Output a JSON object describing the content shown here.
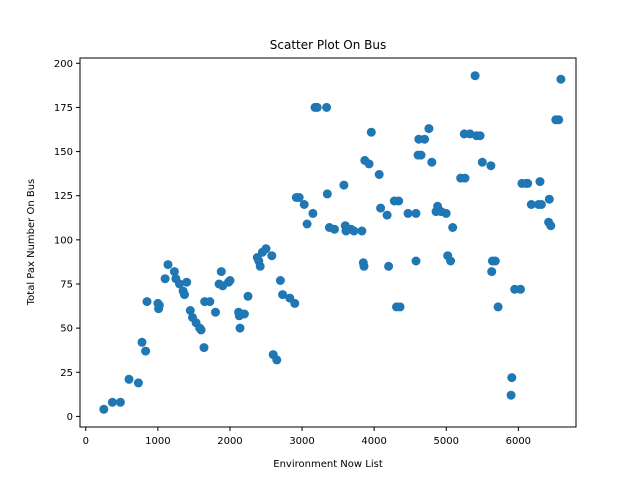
{
  "chart_data": {
    "type": "scatter",
    "title": "Scatter Plot On Bus",
    "xlabel": "Environment Now List",
    "ylabel": "Total Pax Number On Bus",
    "xlim": [
      -80,
      6800
    ],
    "ylim": [
      -6,
      203
    ],
    "xticks": [
      0,
      1000,
      2000,
      3000,
      4000,
      5000,
      6000
    ],
    "yticks": [
      0,
      25,
      50,
      75,
      100,
      125,
      150,
      175,
      200
    ],
    "grid": false,
    "marker_color": "#1f77b4",
    "points": [
      [
        250,
        4
      ],
      [
        370,
        8
      ],
      [
        480,
        8
      ],
      [
        600,
        21
      ],
      [
        730,
        19
      ],
      [
        780,
        42
      ],
      [
        830,
        37
      ],
      [
        850,
        65
      ],
      [
        1000,
        64
      ],
      [
        1010,
        61
      ],
      [
        1020,
        63
      ],
      [
        1100,
        78
      ],
      [
        1140,
        86
      ],
      [
        1230,
        82
      ],
      [
        1250,
        78
      ],
      [
        1300,
        75
      ],
      [
        1350,
        71
      ],
      [
        1370,
        69
      ],
      [
        1400,
        76
      ],
      [
        1450,
        60
      ],
      [
        1480,
        56
      ],
      [
        1530,
        53
      ],
      [
        1580,
        50
      ],
      [
        1600,
        49
      ],
      [
        1640,
        39
      ],
      [
        1650,
        65
      ],
      [
        1720,
        65
      ],
      [
        1800,
        59
      ],
      [
        1850,
        75
      ],
      [
        1880,
        82
      ],
      [
        1900,
        74
      ],
      [
        1980,
        76
      ],
      [
        2000,
        77
      ],
      [
        2120,
        59
      ],
      [
        2130,
        57
      ],
      [
        2140,
        50
      ],
      [
        2200,
        58
      ],
      [
        2250,
        68
      ],
      [
        2380,
        90
      ],
      [
        2400,
        88
      ],
      [
        2420,
        85
      ],
      [
        2450,
        93
      ],
      [
        2500,
        95
      ],
      [
        2580,
        91
      ],
      [
        2600,
        35
      ],
      [
        2650,
        32
      ],
      [
        2700,
        77
      ],
      [
        2730,
        69
      ],
      [
        2830,
        67
      ],
      [
        2900,
        64
      ],
      [
        2920,
        124
      ],
      [
        2960,
        124
      ],
      [
        3030,
        120
      ],
      [
        3070,
        109
      ],
      [
        3150,
        115
      ],
      [
        3180,
        175
      ],
      [
        3210,
        175
      ],
      [
        3340,
        175
      ],
      [
        3350,
        126
      ],
      [
        3380,
        107
      ],
      [
        3450,
        106
      ],
      [
        3580,
        131
      ],
      [
        3600,
        108
      ],
      [
        3610,
        105
      ],
      [
        3680,
        106
      ],
      [
        3720,
        105
      ],
      [
        3830,
        105
      ],
      [
        3850,
        87
      ],
      [
        3860,
        85
      ],
      [
        3870,
        145
      ],
      [
        3930,
        143
      ],
      [
        3960,
        161
      ],
      [
        4070,
        137
      ],
      [
        4090,
        118
      ],
      [
        4180,
        114
      ],
      [
        4200,
        85
      ],
      [
        4280,
        122
      ],
      [
        4310,
        62
      ],
      [
        4340,
        122
      ],
      [
        4360,
        62
      ],
      [
        4470,
        115
      ],
      [
        4580,
        115
      ],
      [
        4580,
        88
      ],
      [
        4610,
        148
      ],
      [
        4620,
        157
      ],
      [
        4650,
        148
      ],
      [
        4700,
        157
      ],
      [
        4760,
        163
      ],
      [
        4800,
        144
      ],
      [
        4860,
        116
      ],
      [
        4880,
        119
      ],
      [
        4930,
        116
      ],
      [
        5000,
        115
      ],
      [
        5020,
        91
      ],
      [
        5060,
        88
      ],
      [
        5090,
        107
      ],
      [
        5200,
        135
      ],
      [
        5250,
        160
      ],
      [
        5260,
        135
      ],
      [
        5330,
        160
      ],
      [
        5400,
        193
      ],
      [
        5420,
        159
      ],
      [
        5470,
        159
      ],
      [
        5500,
        144
      ],
      [
        5620,
        142
      ],
      [
        5630,
        82
      ],
      [
        5640,
        88
      ],
      [
        5680,
        88
      ],
      [
        5720,
        62
      ],
      [
        5900,
        12
      ],
      [
        5910,
        22
      ],
      [
        5950,
        72
      ],
      [
        6030,
        72
      ],
      [
        6050,
        132
      ],
      [
        6110,
        132
      ],
      [
        6130,
        132
      ],
      [
        6180,
        120
      ],
      [
        6280,
        120
      ],
      [
        6300,
        133
      ],
      [
        6320,
        120
      ],
      [
        6420,
        110
      ],
      [
        6430,
        123
      ],
      [
        6450,
        108
      ],
      [
        6520,
        168
      ],
      [
        6560,
        168
      ],
      [
        6590,
        191
      ]
    ]
  }
}
